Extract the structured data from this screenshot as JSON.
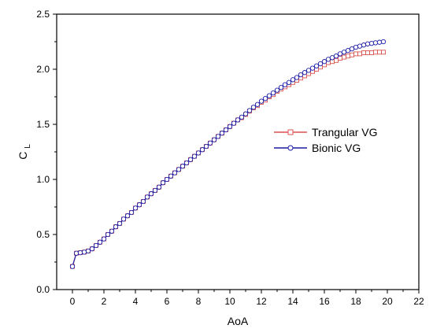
{
  "chart_data": {
    "type": "line",
    "title": "",
    "xlabel": "AoA",
    "ylabel": "C",
    "ylabel_subscript": "L",
    "xlim": [
      -1,
      22
    ],
    "ylim": [
      0,
      2.5
    ],
    "xticks": [
      0,
      2,
      4,
      6,
      8,
      10,
      12,
      14,
      16,
      18,
      20,
      22
    ],
    "yticks": [
      0.0,
      0.5,
      1.0,
      1.5,
      2.0,
      2.5
    ],
    "xtick_labels": [
      "0",
      "2",
      "4",
      "6",
      "8",
      "10",
      "12",
      "14",
      "16",
      "18",
      "20",
      "22"
    ],
    "ytick_labels": [
      "0.0",
      "0.5",
      "1.0",
      "1.5",
      "2.0",
      "2.5"
    ],
    "grid": false,
    "legend_position": "center-right",
    "series": [
      {
        "name": "Trangular VG",
        "color": "#d9534f",
        "marker": "square",
        "x": [
          0.0,
          0.25,
          0.5,
          0.75,
          1.0,
          1.25,
          1.5,
          1.75,
          2.0,
          2.25,
          2.5,
          2.75,
          3.0,
          3.25,
          3.5,
          3.75,
          4.0,
          4.25,
          4.5,
          4.75,
          5.0,
          5.25,
          5.5,
          5.75,
          6.0,
          6.25,
          6.5,
          6.75,
          7.0,
          7.25,
          7.5,
          7.75,
          8.0,
          8.25,
          8.5,
          8.75,
          9.0,
          9.25,
          9.5,
          9.75,
          10.0,
          10.25,
          10.5,
          10.75,
          11.0,
          11.25,
          11.5,
          11.75,
          12.0,
          12.25,
          12.5,
          12.75,
          13.0,
          13.25,
          13.5,
          13.75,
          14.0,
          14.25,
          14.5,
          14.75,
          15.0,
          15.25,
          15.5,
          15.75,
          16.0,
          16.25,
          16.5,
          16.75,
          17.0,
          17.25,
          17.5,
          17.75,
          18.0,
          18.25,
          18.5,
          18.75,
          19.0,
          19.25,
          19.5,
          19.75
        ],
        "y": [
          0.21,
          0.33,
          0.335,
          0.34,
          0.35,
          0.37,
          0.4,
          0.43,
          0.46,
          0.5,
          0.53,
          0.57,
          0.6,
          0.64,
          0.67,
          0.7,
          0.74,
          0.77,
          0.8,
          0.84,
          0.87,
          0.9,
          0.93,
          0.97,
          1.0,
          1.03,
          1.06,
          1.09,
          1.12,
          1.15,
          1.18,
          1.21,
          1.24,
          1.27,
          1.3,
          1.33,
          1.36,
          1.39,
          1.42,
          1.45,
          1.48,
          1.51,
          1.54,
          1.56,
          1.59,
          1.62,
          1.65,
          1.67,
          1.7,
          1.72,
          1.75,
          1.77,
          1.8,
          1.82,
          1.84,
          1.86,
          1.88,
          1.9,
          1.92,
          1.94,
          1.96,
          1.98,
          2.0,
          2.02,
          2.04,
          2.06,
          2.07,
          2.08,
          2.1,
          2.11,
          2.12,
          2.13,
          2.14,
          2.14,
          2.15,
          2.15,
          2.15,
          2.155,
          2.155,
          2.155
        ]
      },
      {
        "name": "Bionic VG",
        "color": "#1a1aa6",
        "marker": "circle",
        "x": [
          0.0,
          0.25,
          0.5,
          0.75,
          1.0,
          1.25,
          1.5,
          1.75,
          2.0,
          2.25,
          2.5,
          2.75,
          3.0,
          3.25,
          3.5,
          3.75,
          4.0,
          4.25,
          4.5,
          4.75,
          5.0,
          5.25,
          5.5,
          5.75,
          6.0,
          6.25,
          6.5,
          6.75,
          7.0,
          7.25,
          7.5,
          7.75,
          8.0,
          8.25,
          8.5,
          8.75,
          9.0,
          9.25,
          9.5,
          9.75,
          10.0,
          10.25,
          10.5,
          10.75,
          11.0,
          11.25,
          11.5,
          11.75,
          12.0,
          12.25,
          12.5,
          12.75,
          13.0,
          13.25,
          13.5,
          13.75,
          14.0,
          14.25,
          14.5,
          14.75,
          15.0,
          15.25,
          15.5,
          15.75,
          16.0,
          16.25,
          16.5,
          16.75,
          17.0,
          17.25,
          17.5,
          17.75,
          18.0,
          18.25,
          18.5,
          18.75,
          19.0,
          19.25,
          19.5,
          19.75
        ],
        "y": [
          0.21,
          0.33,
          0.335,
          0.34,
          0.35,
          0.37,
          0.4,
          0.43,
          0.46,
          0.5,
          0.53,
          0.57,
          0.6,
          0.64,
          0.67,
          0.7,
          0.74,
          0.77,
          0.8,
          0.84,
          0.87,
          0.9,
          0.93,
          0.97,
          1.0,
          1.03,
          1.06,
          1.09,
          1.12,
          1.15,
          1.18,
          1.21,
          1.24,
          1.27,
          1.3,
          1.33,
          1.36,
          1.39,
          1.42,
          1.45,
          1.48,
          1.51,
          1.54,
          1.565,
          1.595,
          1.625,
          1.655,
          1.68,
          1.71,
          1.735,
          1.76,
          1.785,
          1.81,
          1.835,
          1.86,
          1.88,
          1.905,
          1.925,
          1.95,
          1.97,
          1.99,
          2.01,
          2.03,
          2.05,
          2.07,
          2.09,
          2.105,
          2.12,
          2.14,
          2.155,
          2.17,
          2.185,
          2.2,
          2.21,
          2.22,
          2.23,
          2.235,
          2.24,
          2.245,
          2.25
        ]
      }
    ]
  }
}
